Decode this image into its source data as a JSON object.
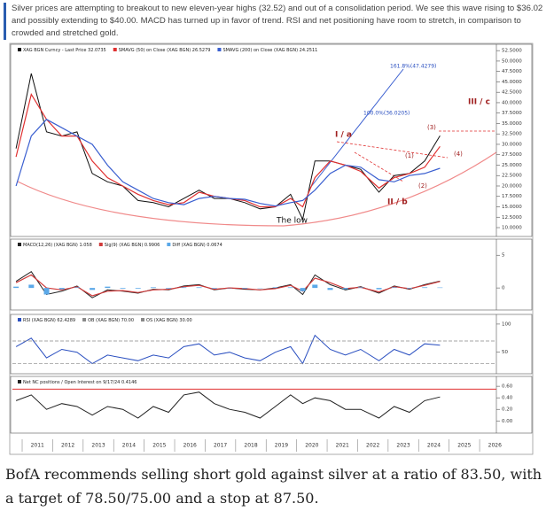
{
  "intro": "Silver prices are attempting to breakout to new eleven-year highs (32.52) and out of a consolidation period. We see this wave rising to $36.02 and possibly extending to $40.00. MACD has turned up in favor of trend. RSI and net positioning have room to stretch, in comparison to crowded and stretched gold.",
  "caption": "BofA recommends selling short gold against silver at a ratio of 83.50, with a target of 78.50/75.00 and a stop at 87.50.",
  "chart_data": [
    {
      "type": "line",
      "x": [
        2010.8,
        2011.3,
        2011.8,
        2012.3,
        2012.8,
        2013.3,
        2013.8,
        2014.3,
        2014.8,
        2015.3,
        2015.8,
        2016.3,
        2016.8,
        2017.3,
        2017.8,
        2018.3,
        2018.8,
        2019.3,
        2019.8,
        2020.2,
        2020.6,
        2021.1,
        2021.6,
        2022.1,
        2022.7,
        2023.2,
        2023.7,
        2024.2,
        2024.7
      ],
      "xlim": [
        2010.68,
        2026.55
      ],
      "ylim": [
        8.3,
        53.6
      ],
      "yticks": [
        {
          "value": 52.5,
          "label": "52.5000"
        },
        {
          "value": 50,
          "label": "50.0000"
        },
        {
          "value": 47.5,
          "label": "47.5000"
        },
        {
          "value": 45,
          "label": "45.0000"
        },
        {
          "value": 42.5,
          "label": "42.5000"
        },
        {
          "value": 40,
          "label": "40.0000"
        },
        {
          "value": 37.5,
          "label": "37.5000"
        },
        {
          "value": 35,
          "label": "35.0000"
        },
        {
          "value": 32.5,
          "label": "32.5000"
        },
        {
          "value": 30,
          "label": "30.0000"
        },
        {
          "value": 27.5,
          "label": "27.5000"
        },
        {
          "value": 25,
          "label": "25.0000"
        },
        {
          "value": 22.5,
          "label": "22.5000"
        },
        {
          "value": 20,
          "label": "20.0000"
        },
        {
          "value": 17.5,
          "label": "17.5000"
        },
        {
          "value": 15,
          "label": "15.0000"
        },
        {
          "value": 12.5,
          "label": "12.5000"
        },
        {
          "value": 10,
          "label": "10.0000"
        }
      ],
      "series": [
        {
          "name": "XAG BGN Curncy - Last Price 32.0735",
          "color": "#111111",
          "values": [
            29,
            47,
            33,
            32,
            33,
            23,
            21,
            20,
            16.5,
            16,
            15,
            17,
            19,
            17,
            17,
            16,
            14.5,
            15,
            18,
            12,
            26,
            26,
            25,
            24,
            18.5,
            22.5,
            23,
            26,
            32.07
          ]
        },
        {
          "name": "SMAVG (50) on Close (XAG BGN) 26.5279",
          "color": "#e03030",
          "values": [
            27,
            42,
            36,
            32,
            32,
            26,
            22,
            20,
            18,
            16.5,
            15.5,
            16,
            18.5,
            17.5,
            17,
            16.5,
            15,
            15,
            17,
            15,
            22,
            26,
            25,
            23.5,
            19.5,
            22,
            23,
            24.5,
            29.5
          ]
        },
        {
          "name": "SMAVG (200) on Close (XAG BGN) 24.2511",
          "color": "#3a5fd0",
          "values": [
            20,
            32,
            36,
            34,
            32,
            30,
            25,
            21,
            19,
            17,
            16,
            15.5,
            17,
            17.5,
            17,
            16.8,
            15.8,
            15.2,
            16,
            16.5,
            19,
            23,
            25,
            24.5,
            21.5,
            21,
            22.5,
            23,
            24.25
          ]
        }
      ],
      "annotations": [
        "161.8%(47.4279)",
        "100.0%(36.0205)",
        "I / a",
        "(3)",
        "(1)",
        "(4)",
        "(2)",
        "II / b",
        "III / c",
        "The low"
      ]
    },
    {
      "type": "line",
      "x": [
        2010.8,
        2011.3,
        2011.8,
        2012.3,
        2012.8,
        2013.3,
        2013.8,
        2014.3,
        2014.8,
        2015.3,
        2015.8,
        2016.3,
        2016.8,
        2017.3,
        2017.8,
        2018.3,
        2018.8,
        2019.3,
        2019.8,
        2020.2,
        2020.6,
        2021.1,
        2021.6,
        2022.1,
        2022.7,
        2023.2,
        2023.7,
        2024.2,
        2024.7
      ],
      "xlim": [
        2010.68,
        2026.55
      ],
      "ylim": [
        -3.1,
        7.2
      ],
      "yticks": [
        5,
        0
      ],
      "series": [
        {
          "name": "MACD(12,26) (XAG BGN) 1.058",
          "color": "#222222",
          "values": [
            1,
            2.5,
            -1,
            -0.5,
            0.3,
            -1.5,
            -0.3,
            -0.5,
            -0.8,
            -0.2,
            -0.3,
            0.3,
            0.5,
            -0.3,
            0,
            -0.2,
            -0.3,
            0,
            0.5,
            -1,
            2,
            0.5,
            -0.3,
            0.2,
            -0.8,
            0.3,
            -0.2,
            0.5,
            1.058
          ]
        },
        {
          "name": "Sig(9) (XAG BGN) 0.9906",
          "color": "#d03a3a",
          "values": [
            0.8,
            2,
            0,
            -0.3,
            0.2,
            -1.2,
            -0.5,
            -0.4,
            -0.7,
            -0.3,
            -0.2,
            0.2,
            0.4,
            -0.2,
            0,
            -0.1,
            -0.3,
            -0.1,
            0.4,
            -0.5,
            1.5,
            0.8,
            -0.1,
            0.1,
            -0.6,
            0.2,
            -0.1,
            0.4,
            0.9906
          ]
        },
        {
          "name": "Diff (XAG BGN) 0.0674",
          "color": "#5aa8e8",
          "style": "bar",
          "values": [
            0.2,
            0.5,
            -1,
            -0.2,
            0.1,
            -0.3,
            0.2,
            -0.1,
            -0.1,
            0.1,
            -0.1,
            0.1,
            0.1,
            -0.1,
            0,
            -0.1,
            0,
            0.1,
            0.1,
            -0.5,
            0.5,
            -0.3,
            -0.2,
            0.1,
            -0.2,
            0.1,
            -0.1,
            0.1,
            0.07
          ]
        }
      ]
    },
    {
      "type": "line",
      "x": [
        2010.8,
        2011.3,
        2011.8,
        2012.3,
        2012.8,
        2013.3,
        2013.8,
        2014.3,
        2014.8,
        2015.3,
        2015.8,
        2016.3,
        2016.8,
        2017.3,
        2017.8,
        2018.3,
        2018.8,
        2019.3,
        2019.8,
        2020.2,
        2020.6,
        2021.1,
        2021.6,
        2022.1,
        2022.7,
        2023.2,
        2023.7,
        2024.2,
        2024.7
      ],
      "xlim": [
        2010.68,
        2026.55
      ],
      "ylim": [
        15,
        114
      ],
      "yticks": [
        100,
        50
      ],
      "series": [
        {
          "name": "RSI (XAG BGN) 62.4289",
          "color": "#2a4fc0",
          "values": [
            60,
            75,
            40,
            55,
            50,
            30,
            45,
            40,
            35,
            45,
            40,
            60,
            65,
            45,
            50,
            40,
            35,
            50,
            60,
            30,
            80,
            55,
            45,
            55,
            35,
            55,
            45,
            65,
            62.43
          ]
        },
        {
          "name": "OB (XAG BGN) 70.00",
          "color": "#888888",
          "level": 70
        },
        {
          "name": "OS (XAG BGN) 30.00",
          "color": "#888888",
          "level": 30
        }
      ]
    },
    {
      "type": "line",
      "x": [
        2010.8,
        2011.3,
        2011.8,
        2012.3,
        2012.8,
        2013.3,
        2013.8,
        2014.3,
        2014.8,
        2015.3,
        2015.8,
        2016.3,
        2016.8,
        2017.3,
        2017.8,
        2018.3,
        2018.8,
        2019.3,
        2019.8,
        2020.2,
        2020.6,
        2021.1,
        2021.6,
        2022.1,
        2022.7,
        2023.2,
        2023.7,
        2024.2,
        2024.7
      ],
      "xlim": [
        2010.68,
        2026.55
      ],
      "ylim": [
        -0.18,
        0.74
      ],
      "yticks": [
        {
          "value": 0.6,
          "label": "0.60"
        },
        {
          "value": 0.4,
          "label": "0.40"
        },
        {
          "value": 0.2,
          "label": "0.20"
        },
        {
          "value": 0,
          "label": "0.00"
        }
      ],
      "xticks": [
        2011,
        2012,
        2013,
        2014,
        2015,
        2016,
        2017,
        2018,
        2019,
        2020,
        2021,
        2022,
        2023,
        2024,
        2025,
        2026
      ],
      "hline": 0.55,
      "hline_color": "#e03030",
      "series": [
        {
          "name": "Net NC positions / Open Interest on 9/17/24 0.4146",
          "color": "#222222",
          "values": [
            0.35,
            0.45,
            0.2,
            0.3,
            0.25,
            0.1,
            0.25,
            0.2,
            0.05,
            0.25,
            0.15,
            0.45,
            0.5,
            0.3,
            0.2,
            0.15,
            0.05,
            0.25,
            0.45,
            0.3,
            0.4,
            0.35,
            0.2,
            0.2,
            0.05,
            0.25,
            0.15,
            0.35,
            0.4146
          ]
        }
      ]
    }
  ]
}
